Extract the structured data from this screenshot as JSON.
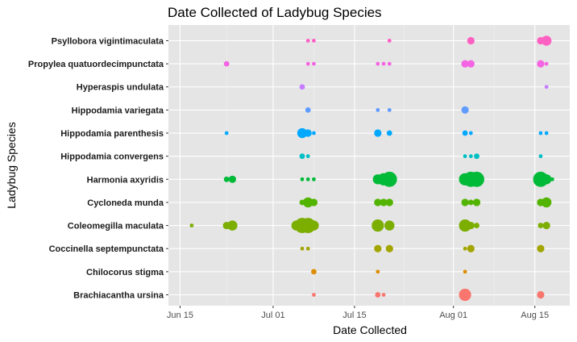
{
  "chart_data": {
    "type": "scatter",
    "title": "Date Collected of Ladybug Species",
    "xlabel": "Date Collected",
    "ylabel": "Ladybug Species",
    "x_axis": {
      "ticks": [
        {
          "label": "Jun 15",
          "day": 0
        },
        {
          "label": "Jul 01",
          "day": 16
        },
        {
          "label": "Jul 15",
          "day": 30
        },
        {
          "label": "Aug 01",
          "day": 47
        },
        {
          "label": "Aug 15",
          "day": 61
        }
      ],
      "range": [
        -2,
        67
      ]
    },
    "grid": true,
    "legend": "none",
    "categories": [
      "Brachiacantha ursina",
      "Chilocorus stigma",
      "Coccinella septempunctata",
      "Coleomegilla maculata",
      "Cycloneda munda",
      "Harmonia axyridis",
      "Hippodamia convergens",
      "Hippodamia parenthesis",
      "Hippodamia variegata",
      "Hyperaspis undulata",
      "Propylea quatuordecimpunctata",
      "Psyllobora vigintimaculata"
    ],
    "series": [
      {
        "category": "Psyllobora vigintimaculata",
        "color": "#FF61C3",
        "points": [
          [
            22,
            1
          ],
          [
            23,
            1
          ],
          [
            36,
            1
          ],
          [
            50,
            3
          ],
          [
            62,
            3
          ],
          [
            63,
            4
          ]
        ]
      },
      {
        "category": "Propylea quatuordecimpunctata",
        "color": "#F564E3",
        "points": [
          [
            8,
            2
          ],
          [
            22,
            1
          ],
          [
            23,
            1
          ],
          [
            34,
            1
          ],
          [
            35,
            1
          ],
          [
            36,
            1
          ],
          [
            49,
            3
          ],
          [
            50,
            3
          ],
          [
            62,
            3
          ],
          [
            63,
            1
          ]
        ]
      },
      {
        "category": "Hyperaspis undulata",
        "color": "#C77CFF",
        "points": [
          [
            21,
            2
          ],
          [
            63,
            1
          ]
        ]
      },
      {
        "category": "Hippodamia variegata",
        "color": "#619CFF",
        "points": [
          [
            22,
            2
          ],
          [
            34,
            1
          ],
          [
            36,
            1
          ],
          [
            49,
            3
          ]
        ]
      },
      {
        "category": "Hippodamia parenthesis",
        "color": "#00A9FF",
        "points": [
          [
            8,
            1
          ],
          [
            21,
            4
          ],
          [
            22,
            3
          ],
          [
            23,
            1
          ],
          [
            34,
            3
          ],
          [
            36,
            2
          ],
          [
            49,
            2
          ],
          [
            50,
            1
          ],
          [
            62,
            1
          ],
          [
            63,
            1
          ]
        ]
      },
      {
        "category": "Hippodamia convergens",
        "color": "#00BFC4",
        "points": [
          [
            21,
            2
          ],
          [
            22,
            1
          ],
          [
            49,
            1
          ],
          [
            50,
            1
          ],
          [
            51,
            2
          ],
          [
            62,
            1
          ]
        ]
      },
      {
        "category": "Harmonia axyridis",
        "color": "#00BA38",
        "points": [
          [
            8,
            2
          ],
          [
            9,
            3
          ],
          [
            21,
            1
          ],
          [
            22,
            1
          ],
          [
            23,
            1
          ],
          [
            34,
            4
          ],
          [
            35,
            5
          ],
          [
            36,
            6
          ],
          [
            49,
            5
          ],
          [
            50,
            6
          ],
          [
            51,
            6
          ],
          [
            62,
            6
          ],
          [
            63,
            4
          ],
          [
            64,
            1
          ]
        ]
      },
      {
        "category": "Cycloneda munda",
        "color": "#53B400",
        "points": [
          [
            21,
            2
          ],
          [
            22,
            4
          ],
          [
            23,
            3
          ],
          [
            34,
            3
          ],
          [
            35,
            3
          ],
          [
            36,
            3
          ],
          [
            49,
            3
          ],
          [
            50,
            2
          ],
          [
            51,
            3
          ],
          [
            62,
            3
          ],
          [
            63,
            4
          ]
        ]
      },
      {
        "category": "Coleomegilla maculata",
        "color": "#7CAE00",
        "points": [
          [
            2,
            1
          ],
          [
            8,
            3
          ],
          [
            9,
            4
          ],
          [
            20,
            4
          ],
          [
            21,
            6
          ],
          [
            22,
            6
          ],
          [
            23,
            4
          ],
          [
            34,
            5
          ],
          [
            36,
            4
          ],
          [
            49,
            5
          ],
          [
            50,
            3
          ],
          [
            51,
            2
          ],
          [
            62,
            2
          ],
          [
            63,
            3
          ]
        ]
      },
      {
        "category": "Coccinella septempunctata",
        "color": "#A3A500",
        "points": [
          [
            21,
            1
          ],
          [
            22,
            1
          ],
          [
            34,
            3
          ],
          [
            36,
            3
          ],
          [
            49,
            1
          ],
          [
            50,
            3
          ],
          [
            62,
            3
          ]
        ]
      },
      {
        "category": "Chilocorus stigma",
        "color": "#DE8C00",
        "points": [
          [
            23,
            2
          ],
          [
            34,
            1
          ],
          [
            49,
            1
          ]
        ]
      },
      {
        "category": "Brachiacantha ursina",
        "color": "#F8766D",
        "points": [
          [
            23,
            1
          ],
          [
            34,
            2
          ],
          [
            35,
            1
          ],
          [
            49,
            5
          ],
          [
            62,
            3
          ]
        ]
      }
    ]
  }
}
